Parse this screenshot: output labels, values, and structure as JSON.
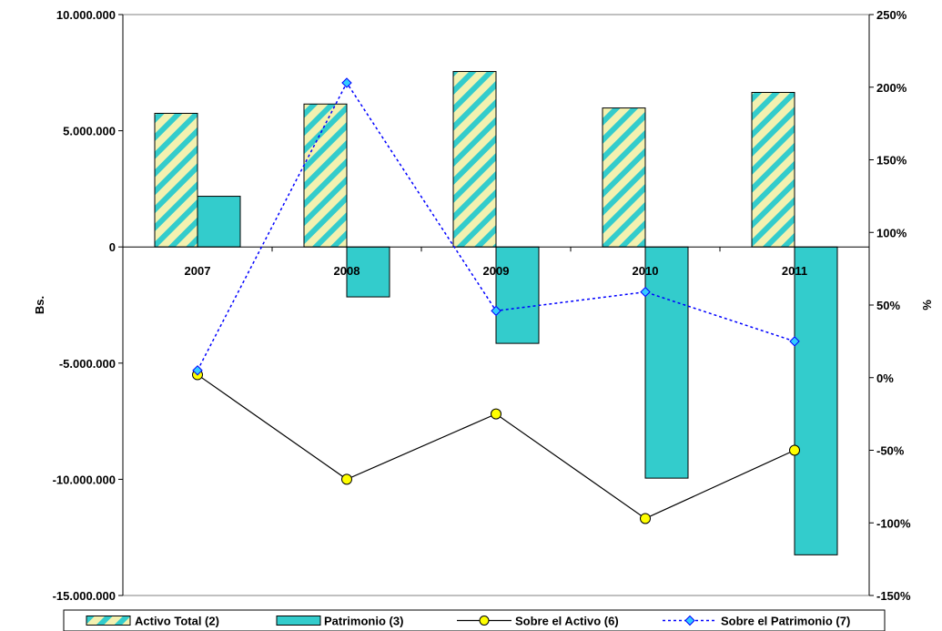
{
  "chart_data": {
    "type": "bar",
    "categories": [
      "2007",
      "2008",
      "2009",
      "2010",
      "2011"
    ],
    "y_left": {
      "label": "Bs.",
      "lim": [
        -15000000,
        10000000
      ],
      "ticks": [
        10000000,
        5000000,
        0,
        -5000000,
        -10000000,
        -15000000
      ],
      "tick_labels": [
        "10.000.000",
        "5.000.000",
        "0",
        "-5.000.000",
        "-10.000.000",
        "-15.000.000"
      ]
    },
    "y_right": {
      "label": "%",
      "lim": [
        -150,
        250
      ],
      "ticks": [
        250,
        200,
        150,
        100,
        50,
        0,
        -50,
        -100,
        -150
      ],
      "tick_labels": [
        "250%",
        "200%",
        "150%",
        "100%",
        "50%",
        "0%",
        "-50%",
        "-100%",
        "-150%"
      ]
    },
    "bar_series": [
      {
        "name": "Activo Total (2)",
        "axis": "left",
        "values": [
          5750000,
          6150000,
          7550000,
          5980000,
          6650000
        ],
        "color": "#F3F1B0",
        "stripe_color": "#33CCCC"
      },
      {
        "name": "Patrimonio (3)",
        "axis": "left",
        "values": [
          2180000,
          -2150000,
          -4150000,
          -9950000,
          -13250000
        ],
        "color": "#33CCCC"
      }
    ],
    "line_series": [
      {
        "name": "Sobre el Activo (6)",
        "axis": "right",
        "values": [
          2,
          -70,
          -25,
          -97,
          -50
        ],
        "color": "#000000",
        "marker": "circle",
        "marker_color": "#FFFF00",
        "dash": "solid"
      },
      {
        "name": "Sobre el Patrimonio (7)",
        "axis": "right",
        "values": [
          5,
          203,
          46,
          59,
          25
        ],
        "color": "#0000FF",
        "marker": "diamond",
        "marker_color": "#33CCFF",
        "dash": "dotted"
      }
    ],
    "legend_position": "bottom",
    "grid": false
  }
}
